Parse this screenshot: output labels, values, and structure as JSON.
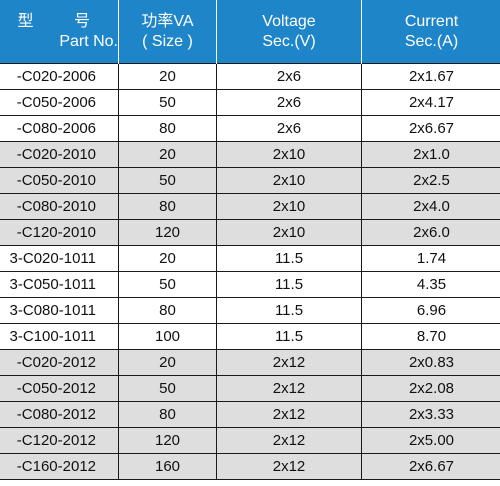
{
  "table": {
    "headers": {
      "part_no": [
        "型   号",
        "Part No."
      ],
      "power": [
        "功率VA",
        "( Size )"
      ],
      "voltage": [
        "Voltage",
        "Sec.(V)"
      ],
      "current": [
        "Current",
        "Sec.(A)"
      ]
    },
    "rows": [
      {
        "part_no": "-C020-2006",
        "power": "20",
        "voltage": "2x6",
        "current": "2x1.67",
        "shaded": false
      },
      {
        "part_no": "-C050-2006",
        "power": "50",
        "voltage": "2x6",
        "current": "2x4.17",
        "shaded": false
      },
      {
        "part_no": "-C080-2006",
        "power": "80",
        "voltage": "2x6",
        "current": "2x6.67",
        "shaded": false
      },
      {
        "part_no": "-C020-2010",
        "power": "20",
        "voltage": "2x10",
        "current": "2x1.0",
        "shaded": true
      },
      {
        "part_no": "-C050-2010",
        "power": "50",
        "voltage": "2x10",
        "current": "2x2.5",
        "shaded": true
      },
      {
        "part_no": "-C080-2010",
        "power": "80",
        "voltage": "2x10",
        "current": "2x4.0",
        "shaded": true
      },
      {
        "part_no": "-C120-2010",
        "power": "120",
        "voltage": "2x10",
        "current": "2x6.0",
        "shaded": true
      },
      {
        "part_no": "3-C020-1011",
        "power": "20",
        "voltage": "11.5",
        "current": "1.74",
        "shaded": false
      },
      {
        "part_no": "3-C050-1011",
        "power": "50",
        "voltage": "11.5",
        "current": "4.35",
        "shaded": false
      },
      {
        "part_no": "3-C080-1011",
        "power": "80",
        "voltage": "11.5",
        "current": "6.96",
        "shaded": false
      },
      {
        "part_no": "3-C100-1011",
        "power": "100",
        "voltage": "11.5",
        "current": "8.70",
        "shaded": false
      },
      {
        "part_no": "-C020-2012",
        "power": "20",
        "voltage": "2x12",
        "current": "2x0.83",
        "shaded": true
      },
      {
        "part_no": "-C050-2012",
        "power": "50",
        "voltage": "2x12",
        "current": "2x2.08",
        "shaded": true
      },
      {
        "part_no": "-C080-2012",
        "power": "80",
        "voltage": "2x12",
        "current": "2x3.33",
        "shaded": true
      },
      {
        "part_no": "-C120-2012",
        "power": "120",
        "voltage": "2x12",
        "current": "2x5.00",
        "shaded": true
      },
      {
        "part_no": "-C160-2012",
        "power": "160",
        "voltage": "2x12",
        "current": "2x6.67",
        "shaded": true
      }
    ]
  }
}
